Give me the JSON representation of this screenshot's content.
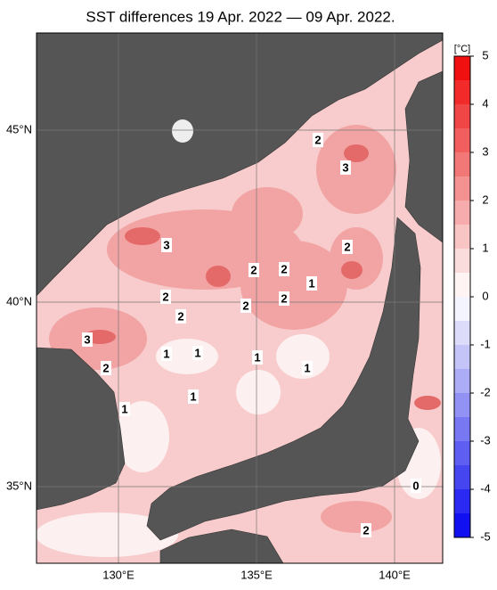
{
  "title": "SST differences 19 Apr. 2022 — 09 Apr. 2022.",
  "lat_labels": [
    "45°N",
    "40°N",
    "35°N"
  ],
  "lon_labels": [
    "130°E",
    "135°E",
    "140°E"
  ],
  "contour_labels": [
    2,
    3,
    2,
    3,
    2,
    2,
    1,
    2,
    2,
    2,
    2,
    3,
    1,
    1,
    1,
    1,
    2,
    1,
    1,
    0,
    2
  ],
  "colorbar": {
    "unit": "[°C]",
    "lim": [
      -5,
      5
    ],
    "ticks": [
      5,
      4,
      3,
      2,
      1,
      0,
      -1,
      -2,
      -3,
      -4,
      -5
    ],
    "colors": [
      "#1010f0",
      "#2a2af2",
      "#4646f0",
      "#5e5ef2",
      "#7878f2",
      "#9292f4",
      "#acacf6",
      "#c4c4f8",
      "#dcdcfa",
      "#f4f4fe",
      "#fef4f4",
      "#fadcdc",
      "#f8c4c4",
      "#f6acac",
      "#f49292",
      "#f27878",
      "#f25e5e",
      "#f04646",
      "#f22a2a",
      "#f01010"
    ]
  }
}
